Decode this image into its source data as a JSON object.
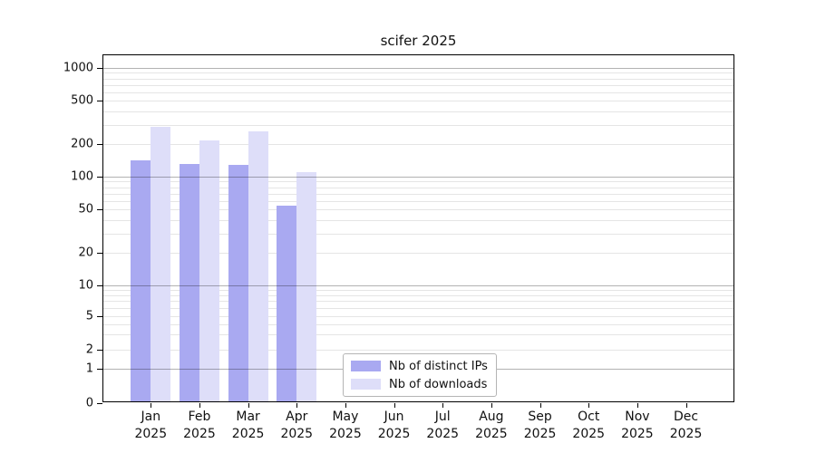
{
  "chart_data": {
    "type": "bar",
    "title": "scifer 2025",
    "categories": [
      "Jan 2025",
      "Feb 2025",
      "Mar 2025",
      "Apr 2025",
      "May 2025",
      "Jun 2025",
      "Jul 2025",
      "Aug 2025",
      "Sep 2025",
      "Oct 2025",
      "Nov 2025",
      "Dec 2025"
    ],
    "x_tick_month": [
      "Jan",
      "Feb",
      "Mar",
      "Apr",
      "May",
      "Jun",
      "Jul",
      "Aug",
      "Sep",
      "Oct",
      "Nov",
      "Dec"
    ],
    "x_tick_year": "2025",
    "series": [
      {
        "name": "Nb of distinct IPs",
        "color": "#a9a9f1",
        "values": [
          142,
          132,
          128,
          54,
          0,
          0,
          0,
          0,
          0,
          0,
          0,
          0
        ]
      },
      {
        "name": "Nb of downloads",
        "color": "#dedef9",
        "values": [
          285,
          214,
          263,
          110,
          0,
          0,
          0,
          0,
          0,
          0,
          0,
          0
        ]
      }
    ],
    "yscale": "symlog",
    "y_ticks": [
      1000,
      500,
      200,
      100,
      50,
      20,
      10,
      5,
      2,
      1,
      0
    ],
    "ylim": [
      0,
      1333
    ],
    "grid": true,
    "legend": {
      "position": "inside-bottom-center"
    }
  },
  "colors": {
    "grid_major": "#b3b3b3",
    "grid_minor": "#e7e7e7",
    "axis": "#000000",
    "text": "#111111"
  }
}
